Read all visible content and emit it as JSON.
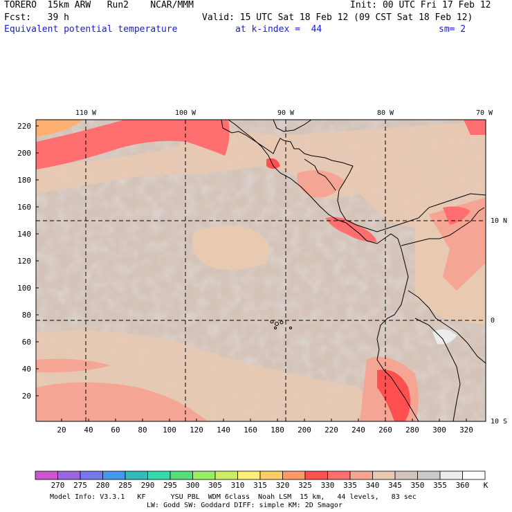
{
  "header": {
    "line1_left": "TORERO  15km ARW   Run2    NCAR/MMM",
    "line1_right": "Init: 00 UTC Fri 17 Feb 12",
    "line2_left": "Fcst:   39 h",
    "line2_right": "Valid: 15 UTC Sat 18 Feb 12 (09 CST Sat 18 Feb 12)",
    "field_name": "Equivalent potential temperature",
    "k_index": "at k-index =  44",
    "smoothing": "sm= 2"
  },
  "map": {
    "lon_labels": [
      "110 W",
      "100 W",
      "90 W",
      "80 W",
      "70 W"
    ],
    "lat_labels": [
      "10 N",
      "0",
      "10 S"
    ],
    "y_ticks": [
      "220",
      "200",
      "180",
      "160",
      "140",
      "120",
      "100",
      "80",
      "60",
      "40",
      "20"
    ],
    "x_ticks": [
      "20",
      "40",
      "60",
      "80",
      "100",
      "120",
      "140",
      "160",
      "180",
      "200",
      "220",
      "240",
      "260",
      "280",
      "300",
      "320"
    ]
  },
  "colorbar": {
    "unit": "K",
    "levels": [
      "270",
      "275",
      "280",
      "285",
      "290",
      "295",
      "300",
      "305",
      "310",
      "315",
      "320",
      "325",
      "330",
      "335",
      "340",
      "345",
      "350",
      "355",
      "360"
    ],
    "colors": [
      "#cc55cc",
      "#9966dd",
      "#7777ee",
      "#4499ee",
      "#33bbbb",
      "#33ddaa",
      "#55dd77",
      "#99ee66",
      "#ccee66",
      "#ffee77",
      "#ffcc66",
      "#ff9966",
      "#ff4f4f",
      "#ff6f6f",
      "#f5a594",
      "#e8c9b2",
      "#d4c3b8",
      "#cacaca",
      "#ececec",
      "#ffffff"
    ]
  },
  "footer": {
    "line1": "Model Info: V3.3.1   KF      YSU PBL  WDM 6class  Noah LSM  15 km,   44 levels,   83 sec",
    "line2": "LW: Godd SW: Goddard DIFF: simple KM: 2D Smagor"
  }
}
